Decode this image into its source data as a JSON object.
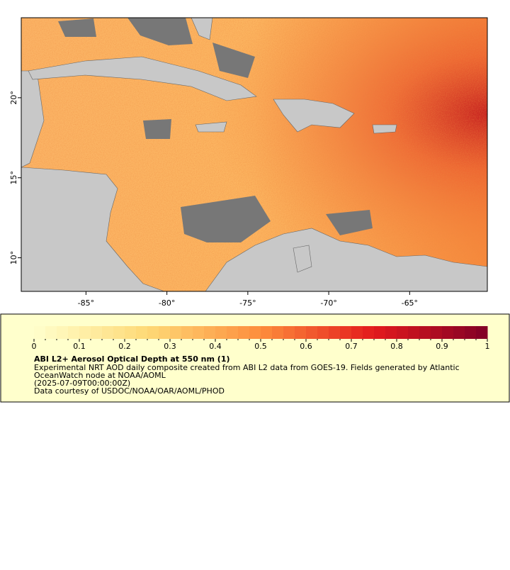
{
  "map": {
    "xlim": [
      -89,
      -60.2
    ],
    "ylim": [
      7.9,
      25
    ],
    "xticks": [
      {
        "value": -85,
        "label": "-85°"
      },
      {
        "value": -80,
        "label": "-80°"
      },
      {
        "value": -75,
        "label": "-75°"
      },
      {
        "value": -70,
        "label": "-70°"
      },
      {
        "value": -65,
        "label": "-65°"
      }
    ],
    "yticks": [
      {
        "value": 10,
        "label": "10°"
      },
      {
        "value": 15,
        "label": "15°"
      },
      {
        "value": 20,
        "label": "20°"
      }
    ]
  },
  "colorbar": {
    "range": [
      0,
      1
    ],
    "ticks": [
      0,
      0.1,
      0.2,
      0.3,
      0.4,
      0.5,
      0.6,
      0.7,
      0.8,
      0.9,
      1
    ]
  },
  "legend": {
    "title": "ABI L2+ Aerosol Optical Depth at 550 nm (1)",
    "lines": [
      "Experimental NRT AOD daily composite created from ABI L2 data from GOES-19. Fields generated by Atlantic",
      "OceanWatch node at NOAA/AOML",
      "(2025-07-09T00:00:00Z)",
      "Data courtesy of USDOC/NOAA/OAR/AOML/PHOD"
    ]
  }
}
